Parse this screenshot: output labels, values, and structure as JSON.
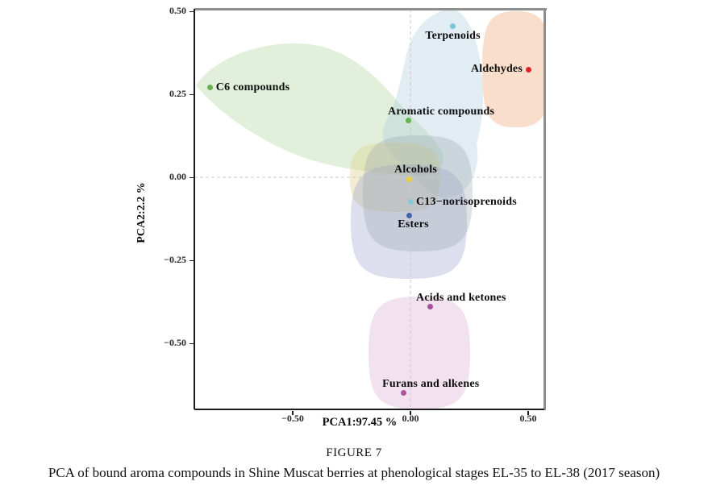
{
  "figure": {
    "caption_title": "FIGURE 7",
    "caption_text": "PCA of bound aroma compounds in Shine Muscat berries at phenological stages EL-35 to EL-38 (2017 season)"
  },
  "chart_data": {
    "type": "scatter",
    "title": "",
    "xlabel": "PCA1:97.45 %",
    "ylabel": "PCA2:2.2 %",
    "xlim": [
      -0.93,
      0.57
    ],
    "ylim": [
      -0.7,
      0.51
    ],
    "grid": false,
    "reference_lines": {
      "x": 0.0,
      "y": 0.0,
      "style": "dashed",
      "color": "#c9c9c9"
    },
    "x_ticks": [
      {
        "value": -0.5,
        "label": "−0.50"
      },
      {
        "value": 0.0,
        "label": "0.00"
      },
      {
        "value": 0.5,
        "label": "0.50"
      }
    ],
    "y_ticks": [
      {
        "value": 0.5,
        "label": "0.50"
      },
      {
        "value": 0.25,
        "label": "0.25"
      },
      {
        "value": 0.0,
        "label": "0.00"
      },
      {
        "value": -0.25,
        "label": "−0.25"
      },
      {
        "value": -0.5,
        "label": "−0.50"
      }
    ],
    "points": [
      {
        "name": "C6 compounds",
        "x": -0.85,
        "y": 0.27,
        "color": "#66b14c",
        "label_side": "right",
        "label_dx": 0
      },
      {
        "name": "Terpenoids",
        "x": 0.18,
        "y": 0.455,
        "color": "#74c7d7",
        "label_side": "below",
        "label_dx": 0
      },
      {
        "name": "Aldehydes",
        "x": 0.5,
        "y": 0.325,
        "color": "#e02428",
        "label_side": "left",
        "label_dx": 0
      },
      {
        "name": "Aromatic compounds",
        "x": -0.01,
        "y": 0.17,
        "color": "#63b44e",
        "label_side": "above",
        "label_dx": 41
      },
      {
        "name": "Alcohols",
        "x": -0.005,
        "y": -0.005,
        "color": "#e7ce44",
        "label_side": "above",
        "label_dx": 8
      },
      {
        "name": "C13−norisoprenoids",
        "x": 0.0,
        "y": -0.075,
        "color": "#82cad8",
        "label_side": "right",
        "label_dx": 0
      },
      {
        "name": "Esters",
        "x": -0.005,
        "y": -0.115,
        "color": "#4662ab",
        "label_side": "below",
        "label_dx": 5
      },
      {
        "name": "Acids and ketones",
        "x": 0.085,
        "y": -0.39,
        "color": "#a8509b",
        "label_side": "above",
        "label_dx": 38
      },
      {
        "name": "Furans and alkenes",
        "x": -0.03,
        "y": -0.65,
        "color": "#ad57a3",
        "label_side": "above",
        "label_dx": 34
      }
    ],
    "regions": {
      "c6-compounds": {
        "color": "#a9d295",
        "opacity": 0.34
      },
      "terpenoids": {
        "color": "#a9cade",
        "opacity": 0.35
      },
      "aldehydes": {
        "color": "#f3bb92",
        "opacity": 0.48
      },
      "alcohols": {
        "color": "#ddcf85",
        "opacity": 0.38
      },
      "c13-norisoprenoids": {
        "color": "#9fabb0",
        "opacity": 0.34
      },
      "esters": {
        "color": "#9a9ecd",
        "opacity": 0.34
      },
      "acids-furans": {
        "color": "#dcaed2",
        "opacity": 0.36
      }
    }
  }
}
